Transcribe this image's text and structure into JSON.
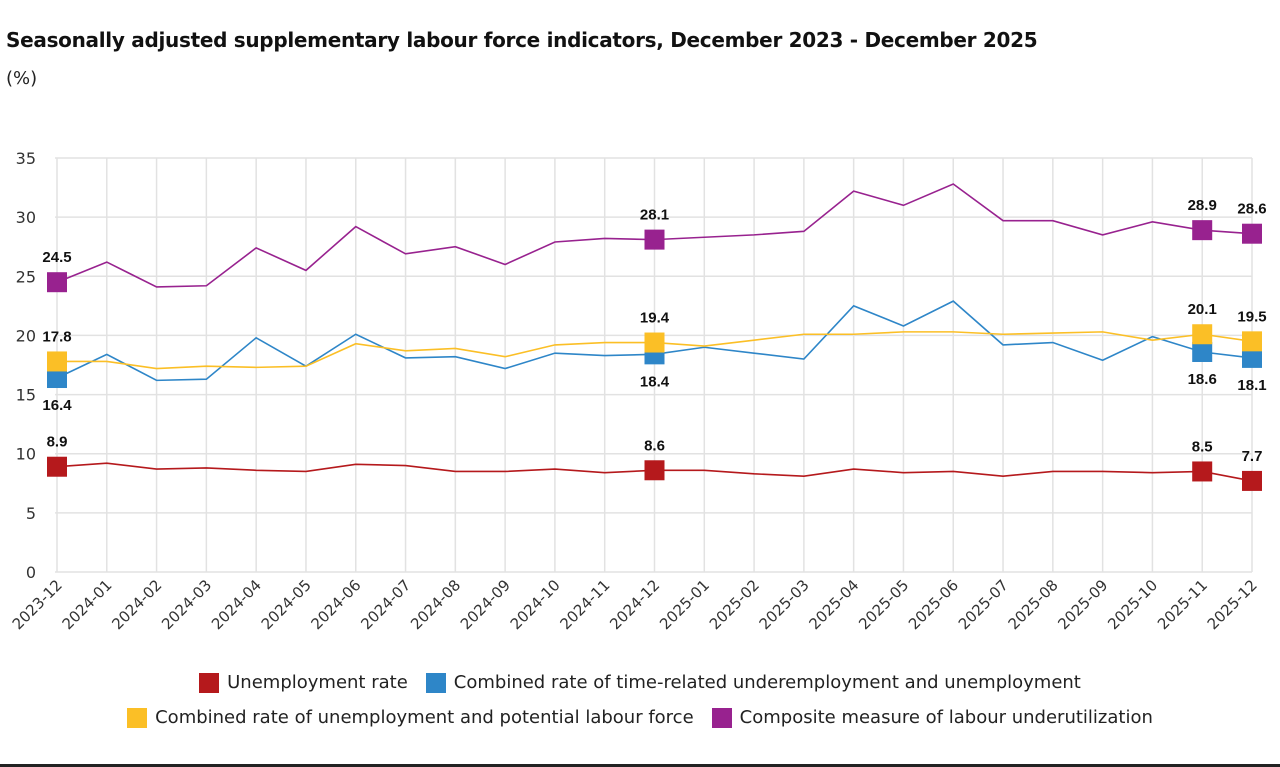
{
  "chart_data": {
    "type": "line",
    "title": "Seasonally adjusted supplementary labour force indicators, December 2023 - December 2025",
    "ylabel": "(%)",
    "ylim": [
      0,
      35
    ],
    "yticks": [
      0,
      5,
      10,
      15,
      20,
      25,
      30,
      35
    ],
    "grid": true,
    "legend_placement": "bottom",
    "categories": [
      "2023-12",
      "2024-01",
      "2024-02",
      "2024-03",
      "2024-04",
      "2024-05",
      "2024-06",
      "2024-07",
      "2024-08",
      "2024-09",
      "2024-10",
      "2024-11",
      "2024-12",
      "2025-01",
      "2025-02",
      "2025-03",
      "2025-04",
      "2025-05",
      "2025-06",
      "2025-07",
      "2025-08",
      "2025-09",
      "2025-10",
      "2025-11",
      "2025-12"
    ],
    "labeled_indices": [
      0,
      12,
      23,
      24
    ],
    "series": [
      {
        "name": "Unemployment rate",
        "color": "#b5191c",
        "label_pos": "above",
        "values": [
          8.9,
          9.2,
          8.7,
          8.8,
          8.6,
          8.5,
          9.1,
          9.0,
          8.5,
          8.5,
          8.7,
          8.4,
          8.6,
          8.6,
          8.3,
          8.1,
          8.7,
          8.4,
          8.5,
          8.1,
          8.5,
          8.5,
          8.4,
          8.5,
          7.7
        ]
      },
      {
        "name": "Combined rate of time-related underemployment and unemployment",
        "color": "#2e86c8",
        "label_pos": "below",
        "values": [
          16.4,
          18.4,
          16.2,
          16.3,
          19.8,
          17.4,
          20.1,
          18.1,
          18.2,
          17.2,
          18.5,
          18.3,
          18.4,
          19.0,
          18.5,
          18.0,
          22.5,
          20.8,
          22.9,
          19.2,
          19.4,
          17.9,
          19.9,
          18.6,
          18.1
        ]
      },
      {
        "name": "Combined rate of unemployment and potential labour force",
        "color": "#fbbf26",
        "label_pos": "above",
        "values": [
          17.8,
          17.8,
          17.2,
          17.4,
          17.3,
          17.4,
          19.3,
          18.7,
          18.9,
          18.2,
          19.2,
          19.4,
          19.4,
          19.1,
          19.6,
          20.1,
          20.1,
          20.3,
          20.3,
          20.1,
          20.2,
          20.3,
          19.6,
          20.1,
          19.5
        ]
      },
      {
        "name": "Composite measure of labour underutilization",
        "color": "#98228f",
        "label_pos": "above",
        "values": [
          24.5,
          26.2,
          24.1,
          24.2,
          27.4,
          25.5,
          29.2,
          26.9,
          27.5,
          26.0,
          27.9,
          28.2,
          28.1,
          28.3,
          28.5,
          28.8,
          32.2,
          31.0,
          32.8,
          29.7,
          29.7,
          28.5,
          29.6,
          28.9,
          28.6
        ]
      }
    ]
  }
}
